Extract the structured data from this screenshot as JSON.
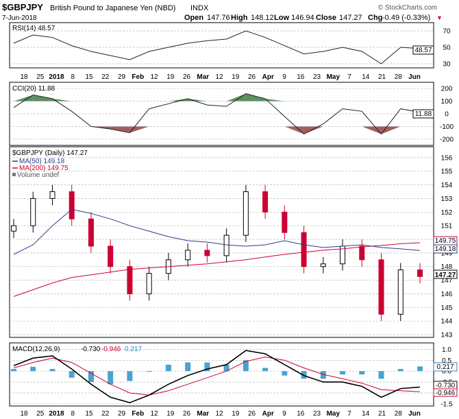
{
  "header": {
    "symbol": "$GBPJPY",
    "name": "British Pound to Japanese Yen (NBD)",
    "exchange": "INDX",
    "date": "7-Jun-2018",
    "open_label": "Open",
    "open": "147.76",
    "high_label": "High",
    "high": "148.12",
    "low_label": "Low",
    "low": "146.94",
    "close_label": "Close",
    "close": "147.27",
    "chg_label": "Chg",
    "chg": "-0.49 (-0.33%)",
    "chg_arrow": "▼",
    "watermark": "© StockCharts.com"
  },
  "colors": {
    "up": "#000000",
    "down": "#cc0033",
    "ma50": "#2b3a8c",
    "ma200": "#cc0033",
    "cci_pos": "#5f8f60",
    "cci_neg": "#a0605f",
    "hist": "#4aa3cf",
    "macd": "#000000",
    "signal": "#cc0033"
  },
  "x_axis": {
    "ticks": [
      "18",
      "25",
      "2018",
      "8",
      "15",
      "22",
      "29",
      "Feb",
      "12",
      "19",
      "26",
      "Mar",
      "12",
      "19",
      "26",
      "Apr",
      "9",
      "16",
      "23",
      "May",
      "7",
      "14",
      "21",
      "28",
      "Jun"
    ],
    "bold": [
      "2018",
      "Feb",
      "Mar",
      "Apr",
      "May",
      "Jun"
    ]
  },
  "rsi": {
    "label": "RSI(14) 48.57",
    "value": 48.57,
    "value_label": "48.57",
    "levels": [
      70,
      50,
      30
    ],
    "ticks": [
      "70",
      "50",
      "30"
    ],
    "ylim": [
      25,
      80
    ]
  },
  "cci": {
    "label": "CCI(20) 11.88",
    "value": 11.88,
    "value_label": "11.88",
    "ticks": [
      "200",
      "100",
      "0",
      "-100",
      "-200"
    ],
    "ylim": [
      -250,
      250
    ]
  },
  "price": {
    "label": "$GBPJPY (Daily) 147.27",
    "ma50_label": "MA(50) 149.18",
    "ma200_label": "MA(200) 149.75",
    "volume_label": "Volume undef",
    "ma50_value_label": "149.18",
    "ma200_value_label": "149.75",
    "close_value_label": "147.27",
    "ticks": [
      "156",
      "155",
      "154",
      "153",
      "152",
      "151",
      "150",
      "149",
      "148",
      "147",
      "146",
      "145",
      "144",
      "143"
    ],
    "ylim": [
      142.8,
      156.8
    ]
  },
  "macd": {
    "label": "MACD(12,26,9)",
    "macd_value": "-0.730",
    "signal_value": "-0.946",
    "hist_value": "0.217",
    "ticks": [
      "1.0",
      "0.5",
      "0.0",
      "-0.5",
      "-1.0",
      "-1.5"
    ],
    "ylim": [
      -1.6,
      1.3
    ]
  },
  "chart_data": {
    "type": "candlestick",
    "title": "$GBPJPY British Pound to Japanese Yen (NBD)",
    "dates": [
      "2018-01-15",
      "2018-01-22",
      "2018-01-29",
      "2018-02-05",
      "2018-02-12",
      "2018-02-19",
      "2018-02-26",
      "2018-03-05",
      "2018-03-12",
      "2018-03-19",
      "2018-03-26",
      "2018-04-02",
      "2018-04-09",
      "2018-04-16",
      "2018-04-23",
      "2018-04-30",
      "2018-05-07",
      "2018-05-14",
      "2018-05-21",
      "2018-05-28",
      "2018-06-04",
      "2018-06-07"
    ],
    "close": [
      151.0,
      153.0,
      153.5,
      151.5,
      149.5,
      148.0,
      146.0,
      147.5,
      148.5,
      149.2,
      148.8,
      150.3,
      153.5,
      152.0,
      150.5,
      148.0,
      148.2,
      149.5,
      148.5,
      144.5,
      147.76,
      147.27
    ],
    "ma50": [
      148.9,
      149.6,
      151.0,
      152.2,
      151.9,
      151.5,
      151.0,
      150.6,
      150.2,
      149.9,
      149.8,
      149.6,
      149.5,
      149.6,
      149.9,
      149.6,
      149.4,
      149.5,
      149.6,
      149.4,
      149.3,
      149.18
    ],
    "ma200": [
      145.8,
      146.3,
      146.8,
      147.2,
      147.4,
      147.6,
      147.8,
      147.9,
      148.0,
      148.1,
      148.2,
      148.35,
      148.5,
      148.7,
      148.9,
      149.05,
      149.2,
      149.3,
      149.45,
      149.55,
      149.68,
      149.75
    ],
    "rsi": [
      55,
      65,
      62,
      52,
      45,
      40,
      35,
      45,
      50,
      55,
      58,
      60,
      70,
      62,
      52,
      42,
      45,
      50,
      45,
      30,
      50,
      48.57
    ],
    "cci": [
      50,
      150,
      120,
      20,
      -100,
      -120,
      -150,
      40,
      80,
      120,
      70,
      60,
      160,
      120,
      -20,
      -160,
      -80,
      40,
      20,
      -160,
      40,
      11.88
    ],
    "macd": [
      0.25,
      0.6,
      0.7,
      0.1,
      -0.6,
      -1.2,
      -1.45,
      -1.1,
      -0.6,
      -0.2,
      0.1,
      0.3,
      0.95,
      0.8,
      0.3,
      -0.2,
      -0.5,
      -0.5,
      -0.7,
      -1.2,
      -0.8,
      -0.73
    ],
    "signal": [
      0.15,
      0.4,
      0.6,
      0.4,
      -0.1,
      -0.6,
      -1.0,
      -1.1,
      -0.9,
      -0.6,
      -0.3,
      0.0,
      0.45,
      0.65,
      0.5,
      0.15,
      -0.15,
      -0.35,
      -0.55,
      -0.85,
      -0.9,
      -0.946
    ]
  }
}
